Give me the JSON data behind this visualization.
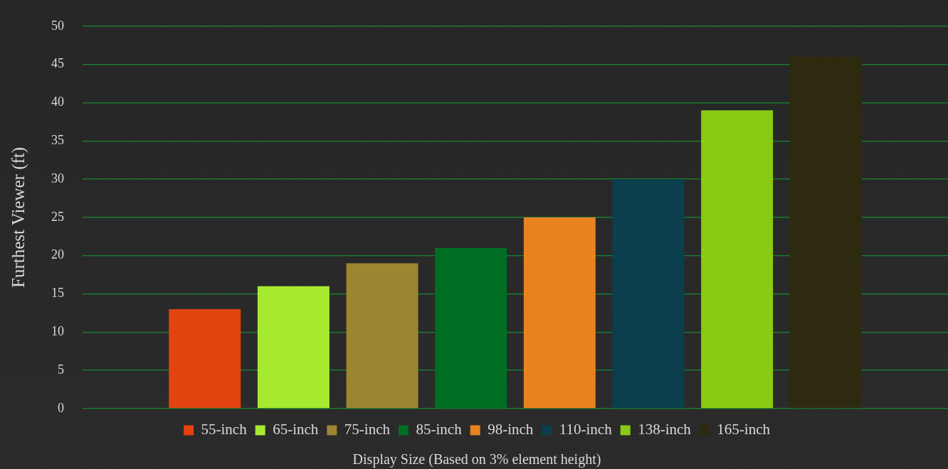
{
  "chart_data": {
    "type": "bar",
    "categories": [
      null
    ],
    "xlabel": "Display Size (Based on 3% element height)",
    "ylabel": "Furthest Viewer (ft)",
    "series": [
      {
        "name": "55-inch",
        "color": "#e2430f",
        "values": [
          13
        ]
      },
      {
        "name": "65-inch",
        "color": "#a6ea2f",
        "values": [
          16
        ]
      },
      {
        "name": "75-inch",
        "color": "#9c8631",
        "values": [
          19
        ]
      },
      {
        "name": "85-inch",
        "color": "#006e22",
        "values": [
          21
        ]
      },
      {
        "name": "98-inch",
        "color": "#e8821f",
        "values": [
          25
        ]
      },
      {
        "name": "110-inch",
        "color": "#0b3f4d",
        "values": [
          30
        ]
      },
      {
        "name": "138-inch",
        "color": "#89cb14",
        "values": [
          39
        ]
      },
      {
        "name": "165-inch",
        "color": "#2e2a10",
        "values": [
          46
        ]
      }
    ],
    "ylim": [
      0,
      50
    ],
    "yticks": [
      0,
      5,
      10,
      15,
      20,
      25,
      30,
      35,
      40,
      45,
      50
    ],
    "grid": "y",
    "legend": "bottom",
    "tick_labels": "y"
  }
}
